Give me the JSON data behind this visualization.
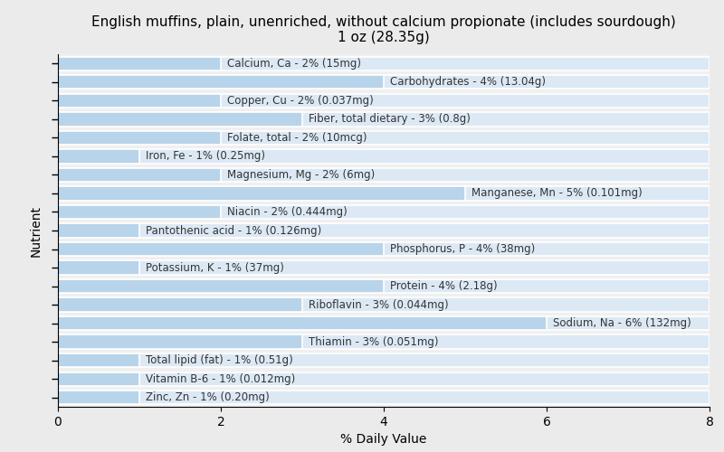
{
  "title": "English muffins, plain, unenriched, without calcium propionate (includes sourdough)\n1 oz (28.35g)",
  "xlabel": "% Daily Value",
  "ylabel": "Nutrient",
  "background_color": "#ebebeb",
  "plot_background_color": "#f0f0f0",
  "bar_color": "#b8d4ea",
  "bar_bg_color": "#dce9f5",
  "nutrients": [
    {
      "label": "Calcium, Ca - 2% (15mg)",
      "value": 2
    },
    {
      "label": "Carbohydrates - 4% (13.04g)",
      "value": 4
    },
    {
      "label": "Copper, Cu - 2% (0.037mg)",
      "value": 2
    },
    {
      "label": "Fiber, total dietary - 3% (0.8g)",
      "value": 3
    },
    {
      "label": "Folate, total - 2% (10mcg)",
      "value": 2
    },
    {
      "label": "Iron, Fe - 1% (0.25mg)",
      "value": 1
    },
    {
      "label": "Magnesium, Mg - 2% (6mg)",
      "value": 2
    },
    {
      "label": "Manganese, Mn - 5% (0.101mg)",
      "value": 5
    },
    {
      "label": "Niacin - 2% (0.444mg)",
      "value": 2
    },
    {
      "label": "Pantothenic acid - 1% (0.126mg)",
      "value": 1
    },
    {
      "label": "Phosphorus, P - 4% (38mg)",
      "value": 4
    },
    {
      "label": "Potassium, K - 1% (37mg)",
      "value": 1
    },
    {
      "label": "Protein - 4% (2.18g)",
      "value": 4
    },
    {
      "label": "Riboflavin - 3% (0.044mg)",
      "value": 3
    },
    {
      "label": "Sodium, Na - 6% (132mg)",
      "value": 6
    },
    {
      "label": "Thiamin - 3% (0.051mg)",
      "value": 3
    },
    {
      "label": "Total lipid (fat) - 1% (0.51g)",
      "value": 1
    },
    {
      "label": "Vitamin B-6 - 1% (0.012mg)",
      "value": 1
    },
    {
      "label": "Zinc, Zn - 1% (0.20mg)",
      "value": 1
    }
  ],
  "xlim": [
    0,
    8
  ],
  "xticks": [
    0,
    2,
    4,
    6,
    8
  ],
  "title_fontsize": 11,
  "label_fontsize": 8.5,
  "axis_fontsize": 10,
  "bar_height": 0.75,
  "text_color": "#333333"
}
